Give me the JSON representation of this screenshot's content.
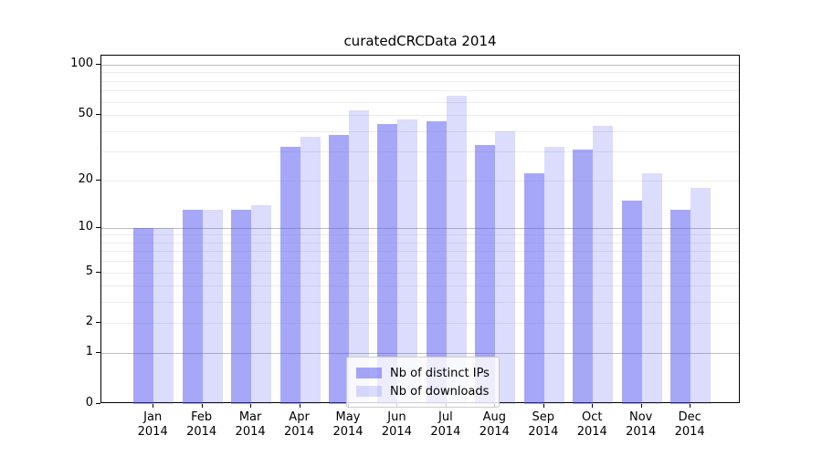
{
  "title": "curatedCRCData 2014",
  "chart_data": {
    "type": "bar",
    "title": "curatedCRCData 2014",
    "categories": [
      "Jan",
      "Feb",
      "Mar",
      "Apr",
      "May",
      "Jun",
      "Jul",
      "Aug",
      "Sep",
      "Oct",
      "Nov",
      "Dec"
    ],
    "category_year": "2014",
    "series": [
      {
        "name": "Nb of distinct IPs",
        "color": "rgba(80,80,240,0.5)",
        "values": [
          10,
          13,
          13,
          32,
          38,
          44,
          46,
          33,
          22,
          31,
          15,
          13
        ]
      },
      {
        "name": "Nb of downloads",
        "color": "rgba(80,80,240,0.2)",
        "values": [
          10,
          13,
          14,
          37,
          53,
          47,
          65,
          40,
          32,
          43,
          22,
          18
        ]
      }
    ],
    "yscale": "log10(value+1)",
    "ylim": [
      0,
      110
    ],
    "yticks": [
      100,
      50,
      20,
      10,
      5,
      2,
      1,
      0
    ],
    "ytick_labels": [
      "100",
      "50",
      "20",
      "10",
      "5",
      "2",
      "1",
      "0"
    ],
    "major_gridlines": [
      1,
      10,
      100
    ],
    "minor_gridlines": [
      2,
      3,
      4,
      5,
      6,
      7,
      8,
      9,
      20,
      30,
      40,
      50,
      60,
      70,
      80,
      90
    ],
    "grid": true,
    "legend_position": "lower center",
    "axis_color": "#000000",
    "background_color": "#ffffff"
  }
}
